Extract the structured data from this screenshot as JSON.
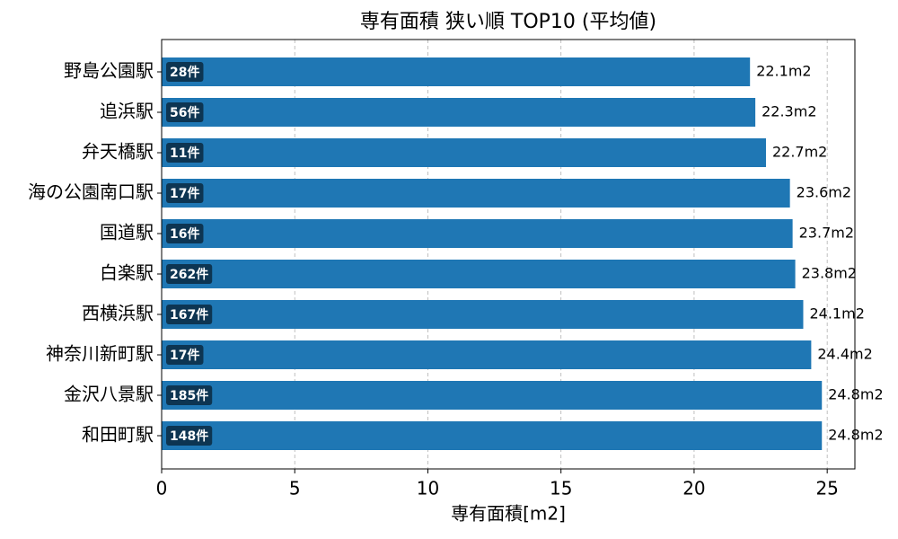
{
  "chart_data": {
    "type": "barh",
    "title": "専有面積 狭い順 TOP10 (平均値)",
    "x_label": "専有面積[m2]",
    "categories": [
      "野島公園駅",
      "追浜駅",
      "弁天橋駅",
      "海の公園南口駅",
      "国道駅",
      "白楽駅",
      "西横浜駅",
      "神奈川新町駅",
      "金沢八景駅",
      "和田町駅"
    ],
    "values": [
      22.1,
      22.3,
      22.7,
      23.6,
      23.7,
      23.8,
      24.1,
      24.4,
      24.8,
      24.8
    ],
    "value_labels": [
      "22.1m2",
      "22.3m2",
      "22.7m2",
      "23.6m2",
      "23.7m2",
      "23.8m2",
      "24.1m2",
      "24.4m2",
      "24.8m2",
      "24.8m2"
    ],
    "count_labels": [
      "28件",
      "56件",
      "11件",
      "17件",
      "16件",
      "262件",
      "167件",
      "17件",
      "185件",
      "148件"
    ],
    "color": "#1f77b4",
    "count_box_color": "#0d3552",
    "xlim": [
      0,
      26.04
    ],
    "xticks": [
      0,
      5,
      10,
      15,
      20,
      25
    ],
    "grid": true
  }
}
